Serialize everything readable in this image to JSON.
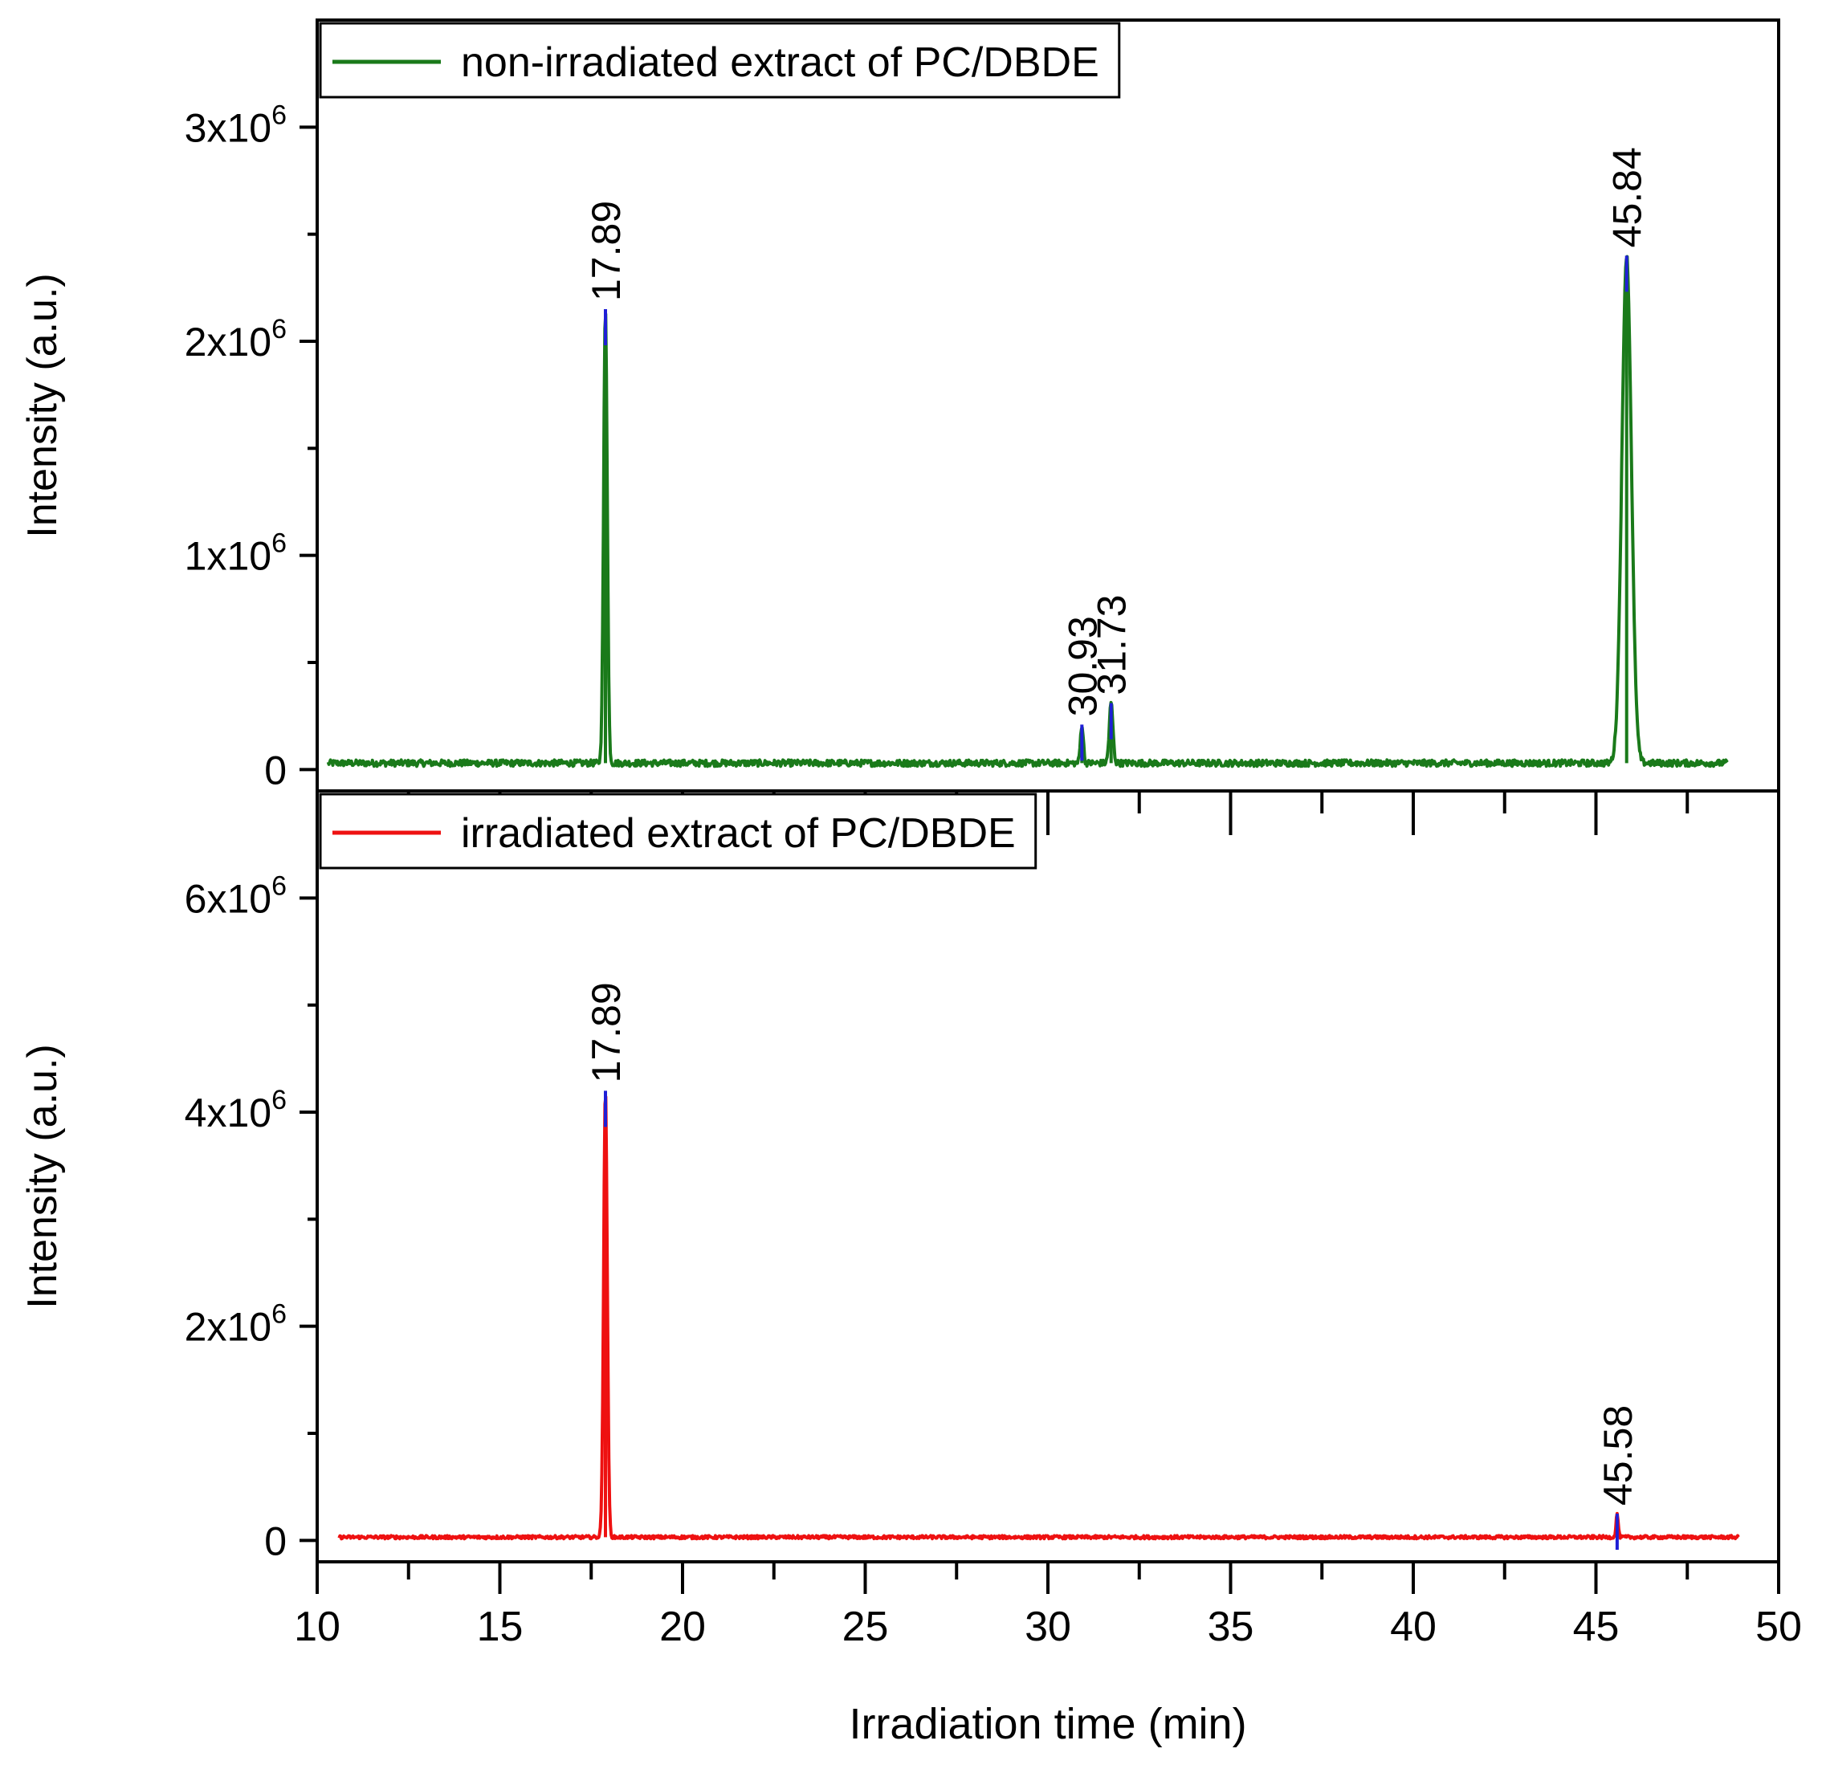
{
  "chart_data": [
    {
      "type": "line",
      "title": "",
      "xlabel": "Irradiation time (min)",
      "ylabel": "Intensity (a.u.)",
      "xlim": [
        10,
        50
      ],
      "ylim": [
        -100000,
        3500000
      ],
      "x_ticks": [
        {
          "value": 10,
          "label": "10"
        },
        {
          "value": 15,
          "label": "15"
        },
        {
          "value": 20,
          "label": "20"
        },
        {
          "value": 25,
          "label": "25"
        },
        {
          "value": 30,
          "label": "30"
        },
        {
          "value": 35,
          "label": "35"
        },
        {
          "value": 40,
          "label": "40"
        },
        {
          "value": 45,
          "label": "45"
        },
        {
          "value": 50,
          "label": "50"
        }
      ],
      "y_ticks": [
        {
          "value": 0,
          "mant": "0",
          "exp": ""
        },
        {
          "value": 1000000,
          "mant": "1x10",
          "exp": "6"
        },
        {
          "value": 2000000,
          "mant": "2x10",
          "exp": "6"
        },
        {
          "value": 3000000,
          "mant": "3x10",
          "exp": "6"
        }
      ],
      "legend": {
        "position": "top-left"
      },
      "series": [
        {
          "name": "non-irradiated extract of PC/DBDE",
          "color": "#1a7a1a",
          "x_range": [
            10.3,
            48.6
          ],
          "baseline": 30000,
          "peaks": [
            {
              "x": 17.89,
              "y": 2150000,
              "width": 0.05
            },
            {
              "x": 30.93,
              "y": 210000,
              "width": 0.04
            },
            {
              "x": 31.73,
              "y": 310000,
              "width": 0.05
            },
            {
              "x": 45.84,
              "y": 2400000,
              "width": 0.13
            }
          ]
        }
      ],
      "peak_labels": [
        {
          "x": 17.89,
          "y": 2150000,
          "label": "17.89"
        },
        {
          "x": 30.93,
          "y": 210000,
          "label": "30.93"
        },
        {
          "x": 31.73,
          "y": 310000,
          "label": "31.73"
        },
        {
          "x": 45.84,
          "y": 2400000,
          "label": "45.84"
        }
      ],
      "marker_color": "#1f1fd6"
    },
    {
      "type": "line",
      "title": "",
      "xlabel": "Irradiation time (min)",
      "ylabel": "Intensity (a.u.)",
      "xlim": [
        10,
        50
      ],
      "ylim": [
        -200000,
        7000000
      ],
      "x_ticks": [
        {
          "value": 10,
          "label": "10"
        },
        {
          "value": 15,
          "label": "15"
        },
        {
          "value": 20,
          "label": "20"
        },
        {
          "value": 25,
          "label": "25"
        },
        {
          "value": 30,
          "label": "30"
        },
        {
          "value": 35,
          "label": "35"
        },
        {
          "value": 40,
          "label": "40"
        },
        {
          "value": 45,
          "label": "45"
        },
        {
          "value": 50,
          "label": "50"
        }
      ],
      "y_ticks": [
        {
          "value": 0,
          "mant": "0",
          "exp": ""
        },
        {
          "value": 2000000,
          "mant": "2x10",
          "exp": "6"
        },
        {
          "value": 4000000,
          "mant": "4x10",
          "exp": "6"
        },
        {
          "value": 6000000,
          "mant": "6x10",
          "exp": "6"
        }
      ],
      "legend": {
        "position": "top-left"
      },
      "series": [
        {
          "name": "irradiated extract of PC/DBDE",
          "color": "#ee1111",
          "x_range": [
            10.6,
            48.9
          ],
          "baseline": 30000,
          "peaks": [
            {
              "x": 17.89,
              "y": 4200000,
              "width": 0.05
            },
            {
              "x": 45.58,
              "y": 250000,
              "width": 0.03
            }
          ]
        }
      ],
      "peak_labels": [
        {
          "x": 17.89,
          "y": 4200000,
          "label": "17.89"
        },
        {
          "x": 45.58,
          "y": 250000,
          "label": "45.58"
        }
      ],
      "marker_color": "#1f1fd6"
    }
  ]
}
